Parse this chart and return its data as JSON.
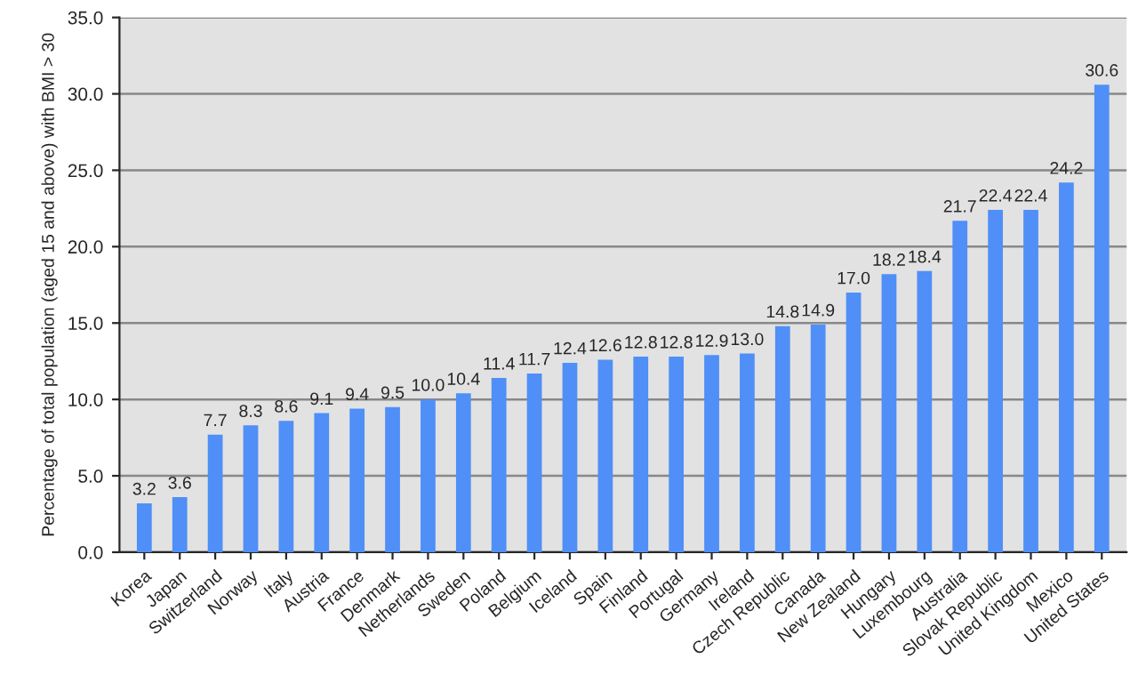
{
  "chart_data": {
    "type": "bar",
    "ylabel": "Percentage of total population (aged 15 and above) with BMI > 30",
    "categories": [
      "Korea",
      "Japan",
      "Switzerland",
      "Norway",
      "Italy",
      "Austria",
      "France",
      "Denmark",
      "Netherlands",
      "Sweden",
      "Poland",
      "Belgium",
      "Iceland",
      "Spain",
      "Finland",
      "Portugal",
      "Germany",
      "Ireland",
      "Czech Republic",
      "Canada",
      "New Zealand",
      "Hungary",
      "Luxembourg",
      "Australia",
      "Slovak Republic",
      "United Kingdom",
      "Mexico",
      "United States"
    ],
    "values": [
      3.2,
      3.6,
      7.7,
      8.3,
      8.6,
      9.1,
      9.4,
      9.5,
      10.0,
      10.4,
      11.4,
      11.7,
      12.4,
      12.6,
      12.8,
      12.8,
      12.9,
      13.0,
      14.8,
      14.9,
      17.0,
      18.2,
      18.4,
      21.7,
      22.4,
      22.4,
      24.2,
      30.6
    ],
    "color": "#4f8ff7",
    "ylim": [
      0,
      35
    ],
    "yticks": [
      {
        "value": 0,
        "label": "0.0"
      },
      {
        "value": 5,
        "label": "5.0"
      },
      {
        "value": 10,
        "label": "10.0"
      },
      {
        "value": 15,
        "label": "15.0"
      },
      {
        "value": 20,
        "label": "20.0"
      },
      {
        "value": 25,
        "label": "25.0"
      },
      {
        "value": 30,
        "label": "30.0"
      },
      {
        "value": 35,
        "label": "35.0"
      }
    ],
    "grid": "y",
    "value_labels": [
      "3.2",
      "3.6",
      "7.7",
      "8.3",
      "8.6",
      "9.1",
      "9.4",
      "9.5",
      "10.0",
      "10.4",
      "11.4",
      "11.7",
      "12.4",
      "12.6",
      "12.8",
      "12.8",
      "12.9",
      "13.0",
      "14.8",
      "14.9",
      "17.0",
      "18.2",
      "18.4",
      "21.7",
      "22.4",
      "22.4",
      "24.2",
      "30.6"
    ]
  }
}
